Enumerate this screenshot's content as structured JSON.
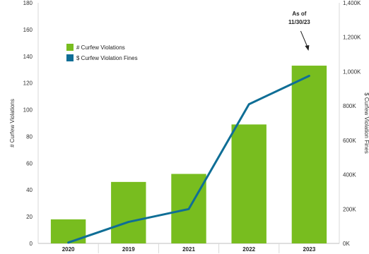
{
  "chart_data": {
    "type": "bar",
    "categories": [
      "2020",
      "2019",
      "2021",
      "2022",
      "2023"
    ],
    "series": [
      {
        "name": "# Curfew Violations",
        "kind": "bar",
        "axis": "left",
        "color": "#78bd1f",
        "values": [
          18,
          46,
          52,
          89,
          133
        ]
      },
      {
        "name": "$ Curfew Violation Fines",
        "kind": "line",
        "axis": "right",
        "color": "#0f6e96",
        "values": [
          5000,
          125000,
          200000,
          810000,
          975000
        ]
      }
    ],
    "ylabel": "# Curfew Violations",
    "y2label": "$ Curfew Violation Fines",
    "ylim": [
      0,
      180
    ],
    "y2lim": [
      0,
      1400000
    ],
    "yticks": [
      "0",
      "20",
      "40",
      "60",
      "80",
      "100",
      "120",
      "140",
      "160",
      "180"
    ],
    "y2ticks": [
      "0K",
      "200K",
      "400K",
      "600K",
      "800K",
      "1,000K",
      "1,200K",
      "1,400K"
    ],
    "annotation": {
      "lines": [
        "As of",
        "11/30/23"
      ],
      "category": "2023"
    },
    "legend_position": "top-left",
    "grid": false
  }
}
